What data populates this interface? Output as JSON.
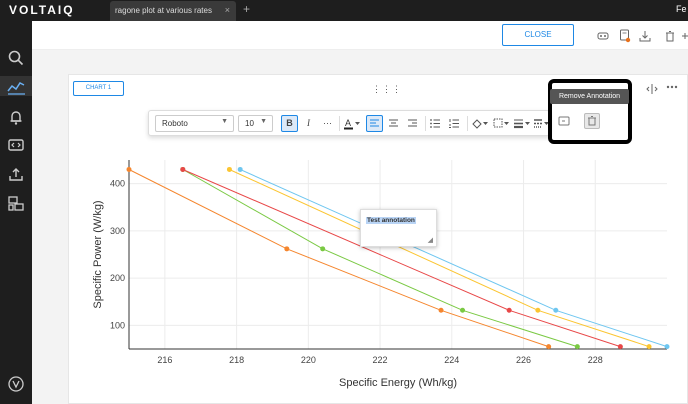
{
  "app": {
    "logo": "VOLTAIQ",
    "user_initials": "Fe"
  },
  "tabs": [
    {
      "label": "ragone plot at various rates",
      "close": "×"
    }
  ],
  "new_tab_symbol": "+",
  "header": {
    "close_label": "CLOSE"
  },
  "panel": {
    "chart_chip_label": "CHART 1",
    "drag_handle": "⋮⋮⋮"
  },
  "format_toolbar": {
    "font_family": "Roboto",
    "font_size": "10",
    "bold": "B",
    "italic": "I",
    "more": "···",
    "text_color": "A"
  },
  "annotation_menu": {
    "tooltip": "Remove Annotation"
  },
  "annotation": {
    "text": "Test annotation"
  },
  "colors": {
    "accent": "#1e88e5",
    "dark": "#1e1e1e",
    "series": [
      "#f5862e",
      "#7ac943",
      "#e84848",
      "#fbc531",
      "#6ec6f0"
    ],
    "notification_dot": "#e8711c"
  },
  "chart_data": {
    "type": "line",
    "title": "",
    "xlabel": "Specific Energy (Wh/kg)",
    "ylabel": "Specific Power (W/kg)",
    "xlim": [
      215,
      230
    ],
    "ylim": [
      50,
      450
    ],
    "xticks": [
      216,
      218,
      220,
      222,
      224,
      226,
      228
    ],
    "yticks": [
      100,
      200,
      300,
      400
    ],
    "grid": true,
    "series": [
      {
        "color": "#f5862e",
        "x": [
          215.0,
          219.4,
          223.7,
          226.7
        ],
        "y": [
          430,
          262,
          132,
          55
        ]
      },
      {
        "color": "#7ac943",
        "x": [
          216.5,
          220.4,
          224.3,
          227.5
        ],
        "y": [
          430,
          262,
          132,
          55
        ]
      },
      {
        "color": "#e84848",
        "x": [
          216.5,
          225.6,
          228.7
        ],
        "y": [
          430,
          132,
          55
        ]
      },
      {
        "color": "#fbc531",
        "x": [
          217.8,
          226.4,
          229.5
        ],
        "y": [
          430,
          132,
          55
        ]
      },
      {
        "color": "#6ec6f0",
        "x": [
          218.1,
          226.9,
          230.0
        ],
        "y": [
          430,
          132,
          55
        ]
      }
    ]
  }
}
